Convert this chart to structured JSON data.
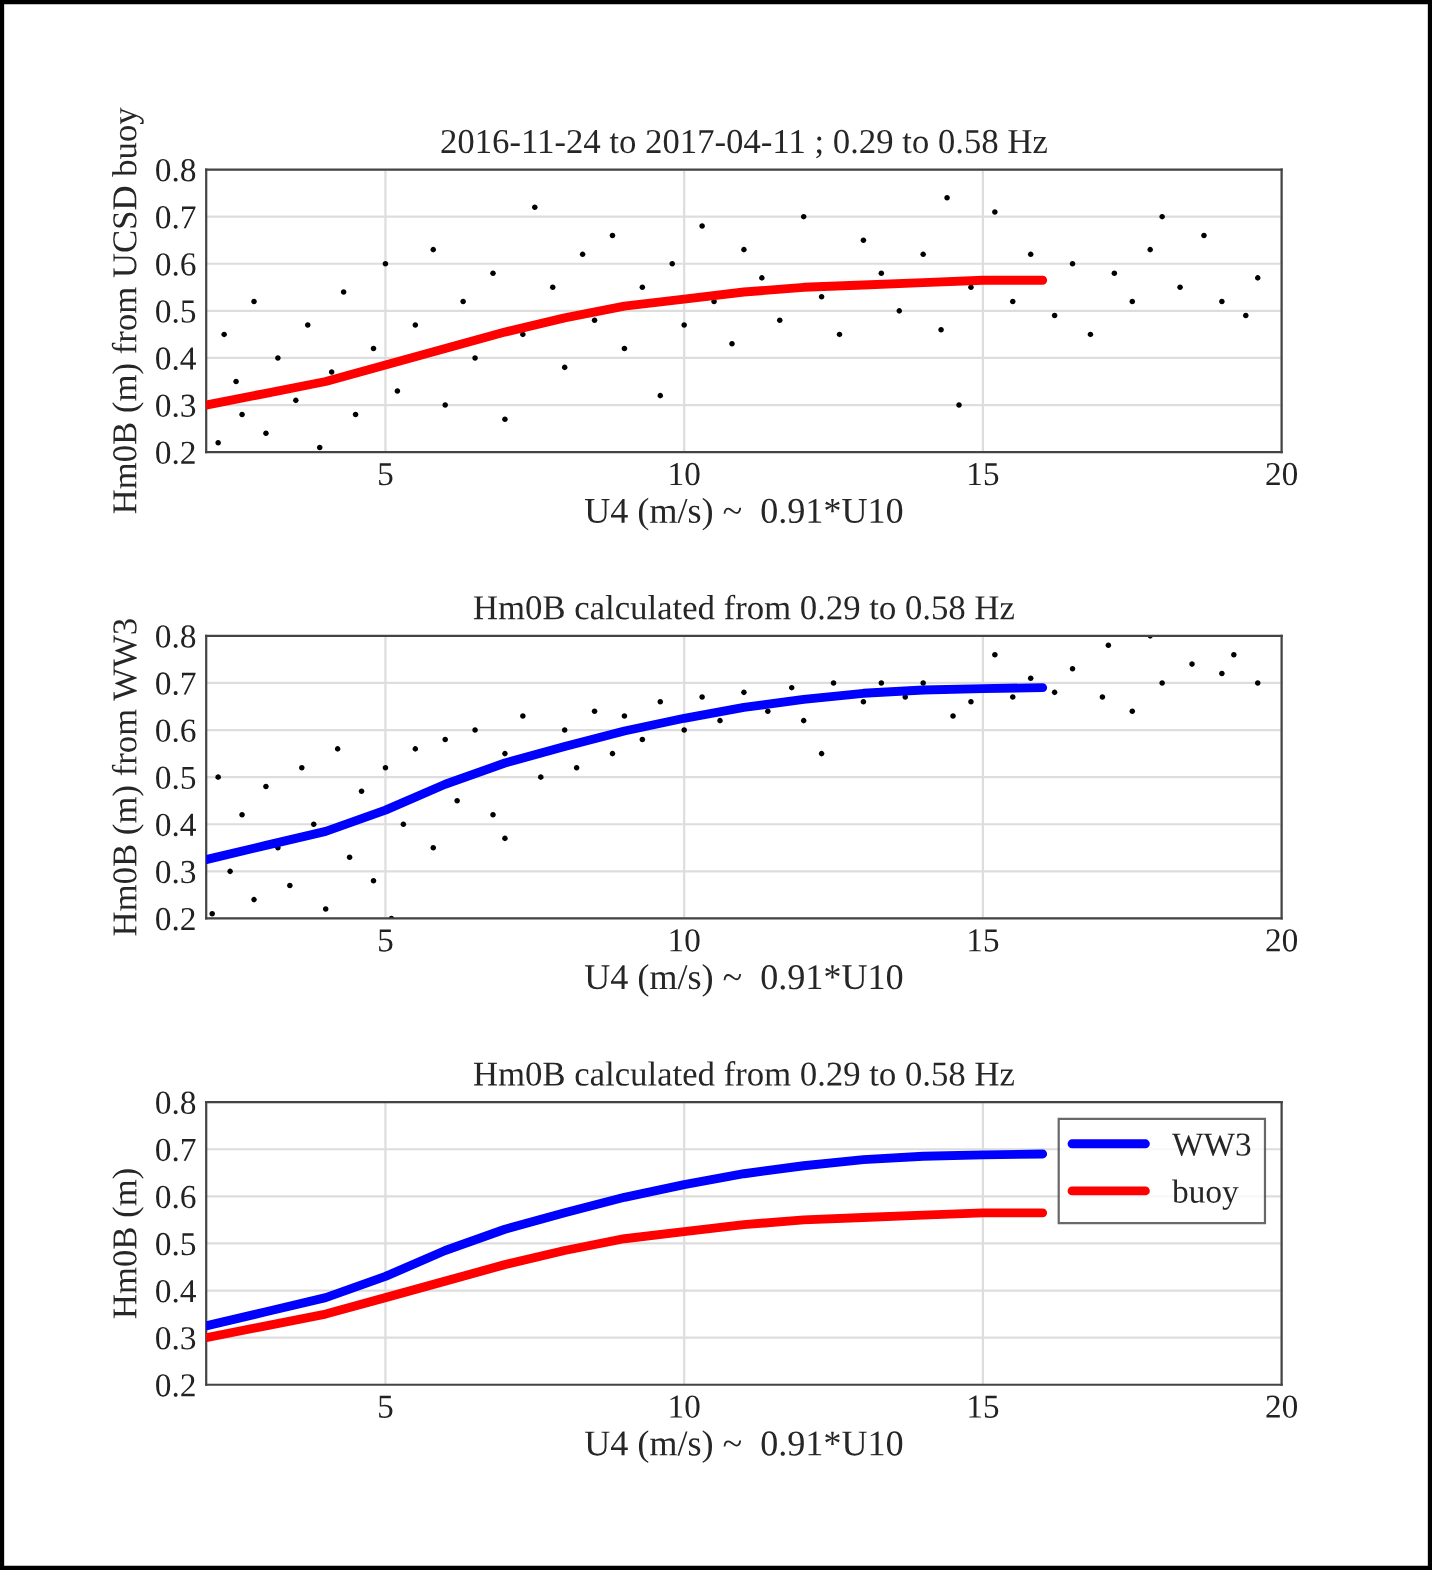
{
  "chart_data": [
    {
      "type": "scatter",
      "title": "2016-11-24 to 2017-04-11 ; 0.29 to 0.58 Hz",
      "xlabel": "U4 (m/s) ~  0.91*U10",
      "ylabel": "Hm0B (m) from UCSD buoy",
      "xlim": [
        2,
        20
      ],
      "xticks": [
        5,
        10,
        15,
        20
      ],
      "ylim": [
        0.2,
        0.8
      ],
      "yticks": [
        0.2,
        0.3,
        0.4,
        0.5,
        0.6,
        0.7,
        0.8
      ],
      "grid": true,
      "marker": "circle",
      "series": [
        {
          "type": "scatter",
          "color": "#000000",
          "x": [
            2.2,
            2.3,
            2.5,
            2.6,
            2.8,
            3.0,
            3.2,
            3.5,
            3.7,
            3.9,
            4.1,
            4.3,
            4.5,
            4.8,
            5.0,
            5.2,
            5.5,
            5.8,
            6.0,
            6.3,
            6.5,
            6.8,
            7.0,
            7.3,
            7.5,
            7.8,
            8.0,
            8.3,
            8.5,
            8.8,
            9.0,
            9.3,
            9.6,
            9.8,
            10.0,
            10.3,
            10.5,
            10.8,
            11.0,
            11.3,
            11.6,
            12.0,
            12.3,
            12.6,
            13.0,
            13.3,
            13.6,
            14.0,
            14.3,
            14.4,
            14.6,
            14.8,
            15.2,
            15.5,
            15.8,
            16.2,
            16.5,
            16.8,
            17.2,
            17.5,
            17.8,
            18.0,
            18.3,
            18.7,
            19.0,
            19.4,
            19.6
          ],
          "values": [
            0.22,
            0.45,
            0.35,
            0.28,
            0.52,
            0.24,
            0.4,
            0.31,
            0.47,
            0.21,
            0.37,
            0.54,
            0.28,
            0.42,
            0.6,
            0.33,
            0.47,
            0.63,
            0.3,
            0.52,
            0.4,
            0.58,
            0.27,
            0.45,
            0.72,
            0.55,
            0.38,
            0.62,
            0.48,
            0.66,
            0.42,
            0.55,
            0.32,
            0.6,
            0.47,
            0.68,
            0.52,
            0.43,
            0.63,
            0.57,
            0.48,
            0.7,
            0.53,
            0.45,
            0.65,
            0.58,
            0.5,
            0.62,
            0.46,
            0.74,
            0.3,
            0.55,
            0.71,
            0.52,
            0.62,
            0.49,
            0.6,
            0.45,
            0.58,
            0.52,
            0.63,
            0.7,
            0.55,
            0.66,
            0.52,
            0.49,
            0.57
          ]
        },
        {
          "type": "line",
          "color": "#ff0000",
          "marker": "none",
          "x": [
            2,
            3,
            4,
            5,
            6,
            7,
            8,
            9,
            10,
            11,
            12,
            13,
            14,
            15,
            16
          ],
          "values": [
            0.3,
            0.325,
            0.35,
            0.385,
            0.42,
            0.455,
            0.485,
            0.51,
            0.525,
            0.54,
            0.55,
            0.555,
            0.56,
            0.565,
            0.565
          ]
        }
      ]
    },
    {
      "type": "scatter",
      "title": "Hm0B calculated from 0.29 to 0.58 Hz",
      "xlabel": "U4 (m/s) ~  0.91*U10",
      "ylabel": "Hm0B (m) from WW3",
      "xlim": [
        2,
        20
      ],
      "xticks": [
        5,
        10,
        15,
        20
      ],
      "ylim": [
        0.2,
        0.8
      ],
      "yticks": [
        0.2,
        0.3,
        0.4,
        0.5,
        0.6,
        0.7,
        0.8
      ],
      "grid": true,
      "marker": "circle",
      "series": [
        {
          "type": "scatter",
          "color": "#000000",
          "x": [
            2.1,
            2.2,
            2.4,
            2.6,
            2.8,
            3.0,
            3.2,
            3.4,
            3.6,
            3.8,
            4.0,
            4.2,
            4.4,
            4.6,
            4.8,
            5.0,
            5.1,
            5.3,
            5.5,
            5.8,
            6.0,
            6.2,
            6.5,
            6.8,
            7.0,
            7.0,
            7.3,
            7.6,
            8.0,
            8.2,
            8.5,
            8.8,
            9.0,
            9.3,
            9.6,
            10.0,
            10.3,
            10.6,
            11.0,
            11.4,
            11.8,
            12.0,
            12.3,
            12.5,
            13.0,
            13.3,
            13.7,
            14.0,
            14.5,
            14.8,
            15.2,
            15.5,
            15.8,
            16.2,
            16.5,
            17.0,
            17.1,
            17.5,
            17.8,
            18.0,
            18.5,
            19.0,
            19.2,
            19.6
          ],
          "values": [
            0.21,
            0.5,
            0.3,
            0.42,
            0.24,
            0.48,
            0.35,
            0.27,
            0.52,
            0.4,
            0.22,
            0.56,
            0.33,
            0.47,
            0.28,
            0.52,
            0.2,
            0.4,
            0.56,
            0.35,
            0.58,
            0.45,
            0.6,
            0.42,
            0.55,
            0.37,
            0.63,
            0.5,
            0.6,
            0.52,
            0.64,
            0.55,
            0.63,
            0.58,
            0.66,
            0.6,
            0.67,
            0.62,
            0.68,
            0.64,
            0.69,
            0.62,
            0.55,
            0.7,
            0.66,
            0.7,
            0.67,
            0.7,
            0.63,
            0.66,
            0.76,
            0.67,
            0.71,
            0.68,
            0.73,
            0.67,
            0.78,
            0.64,
            0.8,
            0.7,
            0.74,
            0.72,
            0.76,
            0.7
          ]
        },
        {
          "type": "line",
          "color": "#0000ff",
          "marker": "none",
          "x": [
            2,
            3,
            4,
            5,
            6,
            7,
            8,
            9,
            10,
            11,
            12,
            13,
            14,
            15,
            16
          ],
          "values": [
            0.325,
            0.355,
            0.385,
            0.43,
            0.485,
            0.53,
            0.565,
            0.598,
            0.625,
            0.648,
            0.665,
            0.678,
            0.685,
            0.688,
            0.69
          ]
        }
      ]
    },
    {
      "type": "line",
      "title": "Hm0B calculated from 0.29 to 0.58 Hz",
      "xlabel": "U4 (m/s) ~  0.91*U10",
      "ylabel": "Hm0B (m)",
      "xlim": [
        2,
        20
      ],
      "xticks": [
        5,
        10,
        15,
        20
      ],
      "ylim": [
        0.2,
        0.8
      ],
      "yticks": [
        0.2,
        0.3,
        0.4,
        0.5,
        0.6,
        0.7,
        0.8
      ],
      "grid": true,
      "legend": "top right",
      "marker": "none",
      "line_style": "solid",
      "x": [
        2,
        3,
        4,
        5,
        6,
        7,
        8,
        9,
        10,
        11,
        12,
        13,
        14,
        15,
        16
      ],
      "series": [
        {
          "name": "WW3",
          "color": "#0000ff",
          "values": [
            0.325,
            0.355,
            0.385,
            0.43,
            0.485,
            0.53,
            0.565,
            0.598,
            0.625,
            0.648,
            0.665,
            0.678,
            0.685,
            0.688,
            0.69
          ]
        },
        {
          "name": "buoy",
          "color": "#ff0000",
          "values": [
            0.3,
            0.325,
            0.35,
            0.385,
            0.42,
            0.455,
            0.485,
            0.51,
            0.525,
            0.54,
            0.55,
            0.555,
            0.56,
            0.565,
            0.565
          ]
        }
      ]
    }
  ]
}
